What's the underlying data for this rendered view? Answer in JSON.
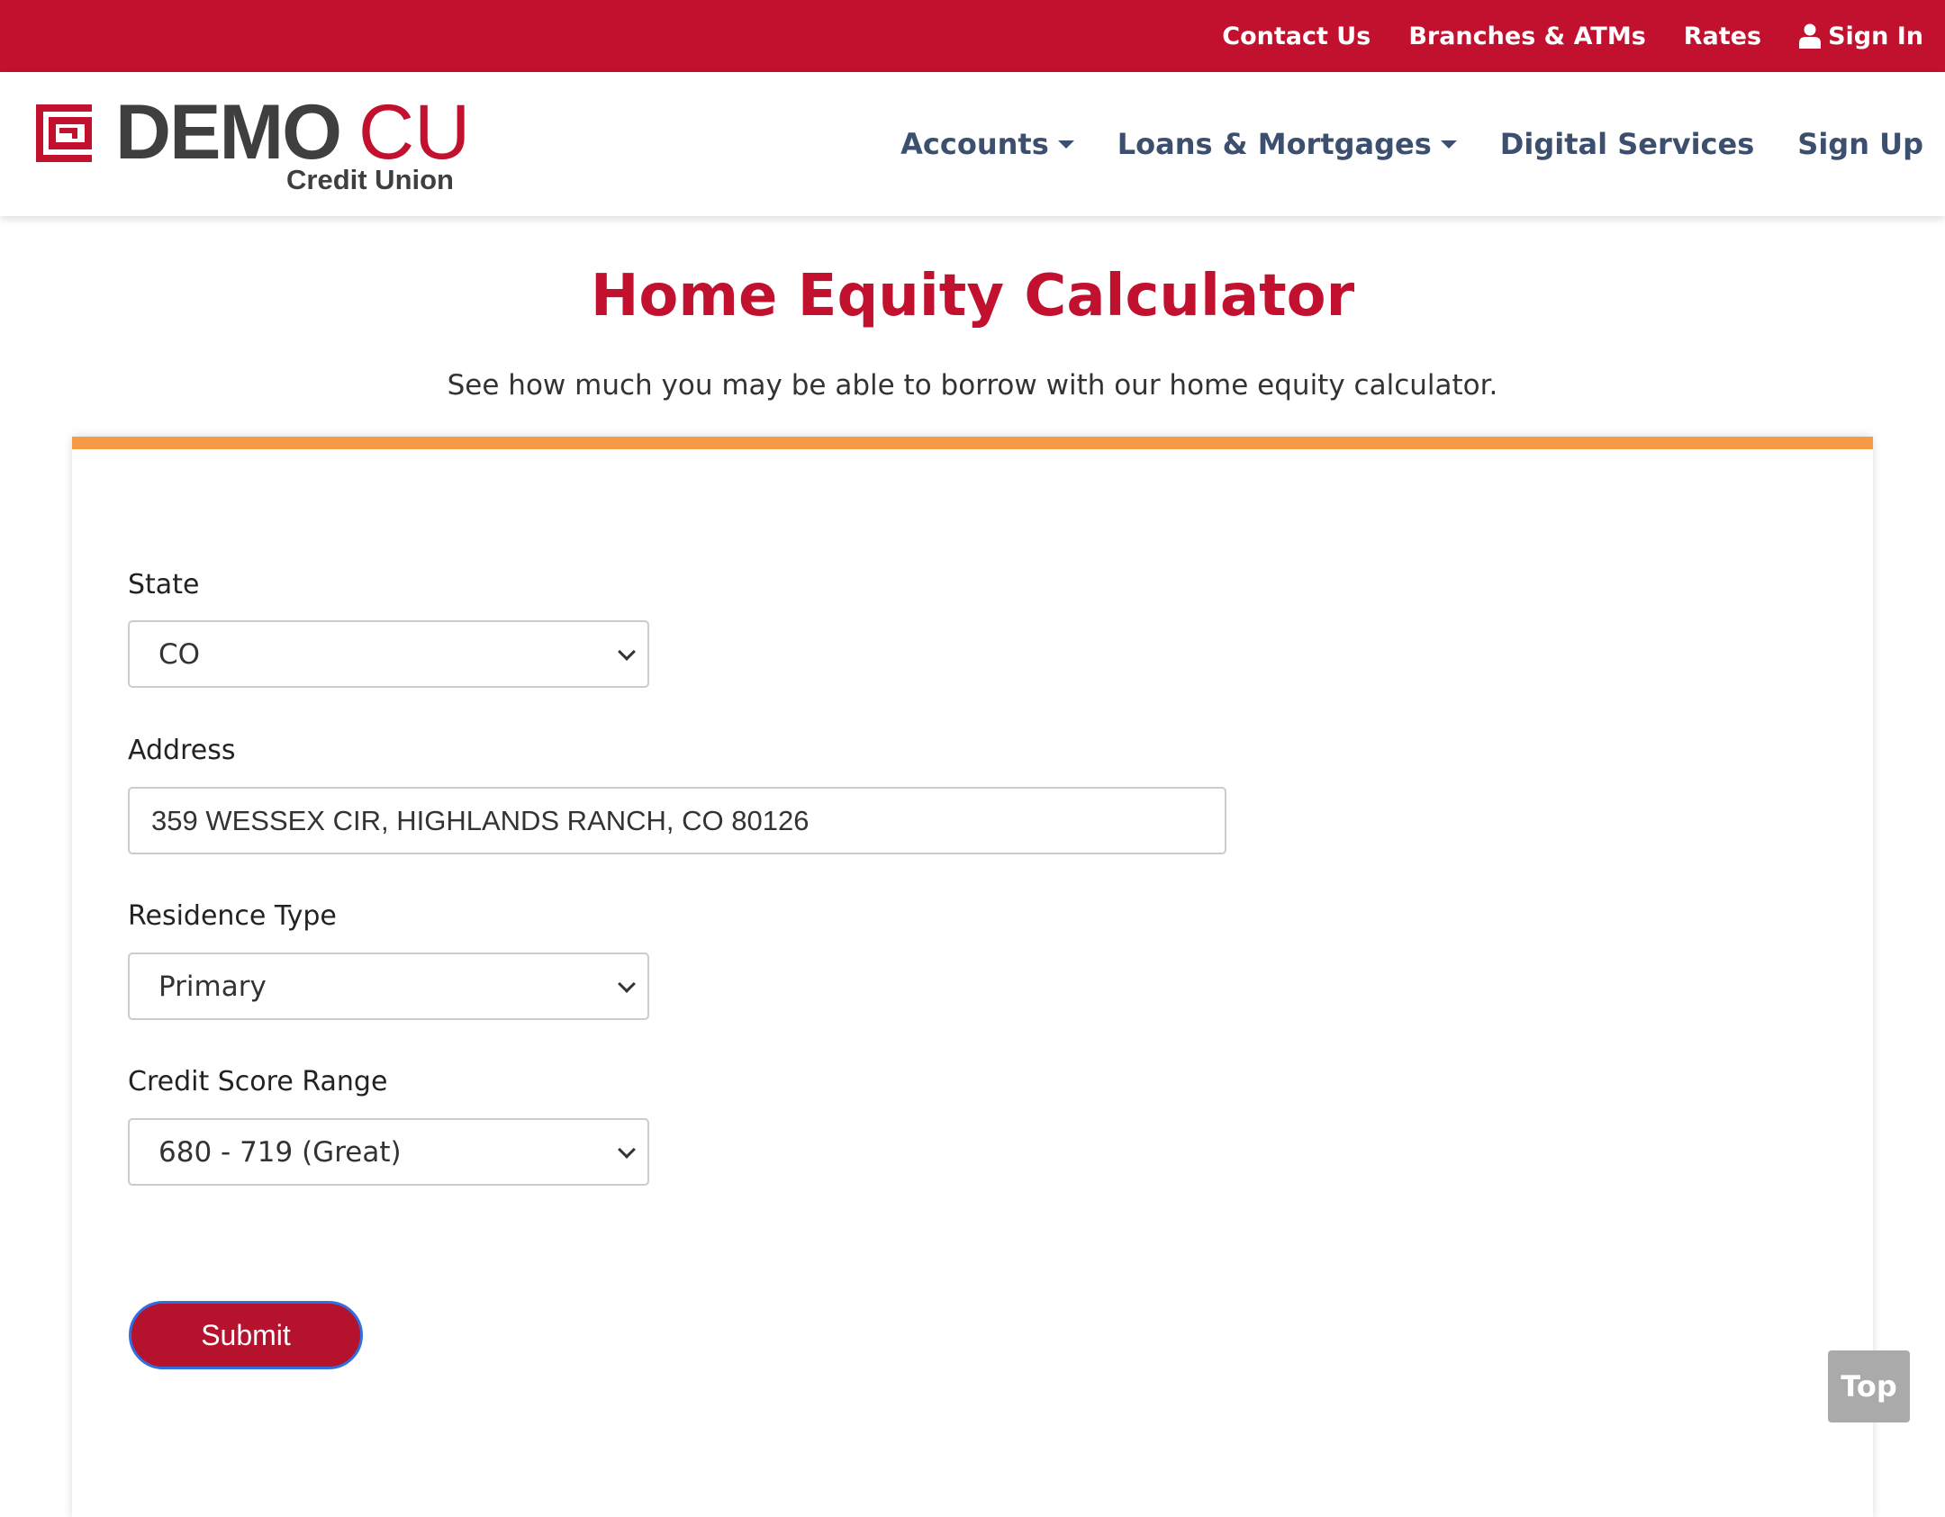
{
  "topbar": {
    "links": [
      "Contact Us",
      "Branches & ATMs",
      "Rates",
      "Sign In"
    ]
  },
  "logo": {
    "brand": "DEMO",
    "suffix": "CU",
    "tagline": "Credit Union"
  },
  "nav": {
    "items": [
      "Accounts",
      "Loans & Mortgages",
      "Digital Services",
      "Sign Up"
    ]
  },
  "page": {
    "title": "Home Equity Calculator",
    "subtitle": "See how much you may be able to borrow with our home equity calculator."
  },
  "form": {
    "state": {
      "label": "State",
      "value": "CO"
    },
    "address": {
      "label": "Address",
      "value": "359 WESSEX CIR, HIGHLANDS RANCH, CO 80126"
    },
    "residence": {
      "label": "Residence Type",
      "value": "Primary"
    },
    "credit": {
      "label": "Credit Score Range",
      "value": "680 - 719 (Great)"
    },
    "submit_label": "Submit"
  },
  "top_button": "Top",
  "colors": {
    "brand_red": "#C1112F",
    "accent_orange": "#F59B45",
    "nav_text": "#3d4f6e"
  }
}
